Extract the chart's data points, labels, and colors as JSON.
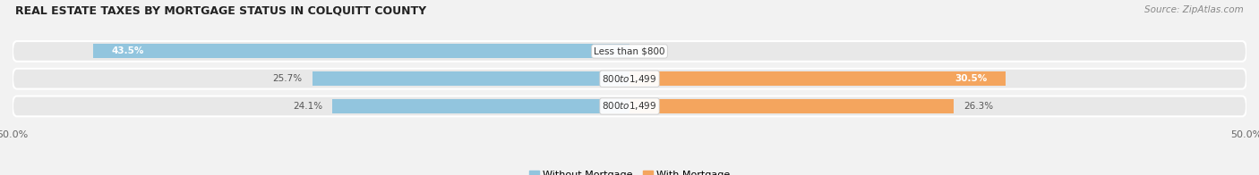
{
  "title": "REAL ESTATE TAXES BY MORTGAGE STATUS IN COLQUITT COUNTY",
  "source": "Source: ZipAtlas.com",
  "rows": [
    {
      "label": "Less than $800",
      "without_mortgage": 43.5,
      "with_mortgage": 0.0,
      "label_inside_left": true,
      "label_inside_right": false
    },
    {
      "label": "$800 to $1,499",
      "without_mortgage": 25.7,
      "with_mortgage": 30.5,
      "label_inside_left": false,
      "label_inside_right": true
    },
    {
      "label": "$800 to $1,499",
      "without_mortgage": 24.1,
      "with_mortgage": 26.3,
      "label_inside_left": false,
      "label_inside_right": false
    }
  ],
  "color_without": "#92c5de",
  "color_with": "#f4a55e",
  "xlim": 50.0,
  "bg_color": "#f2f2f2",
  "bar_bg_color": "#e2e2e2",
  "row_bg_color": "#e8e8e8",
  "legend_labels": [
    "Without Mortgage",
    "With Mortgage"
  ],
  "x_tick_labels": [
    "50.0%",
    "50.0%"
  ],
  "title_fontsize": 9,
  "source_fontsize": 7.5,
  "label_fontsize": 7.5,
  "pct_fontsize": 7.5
}
